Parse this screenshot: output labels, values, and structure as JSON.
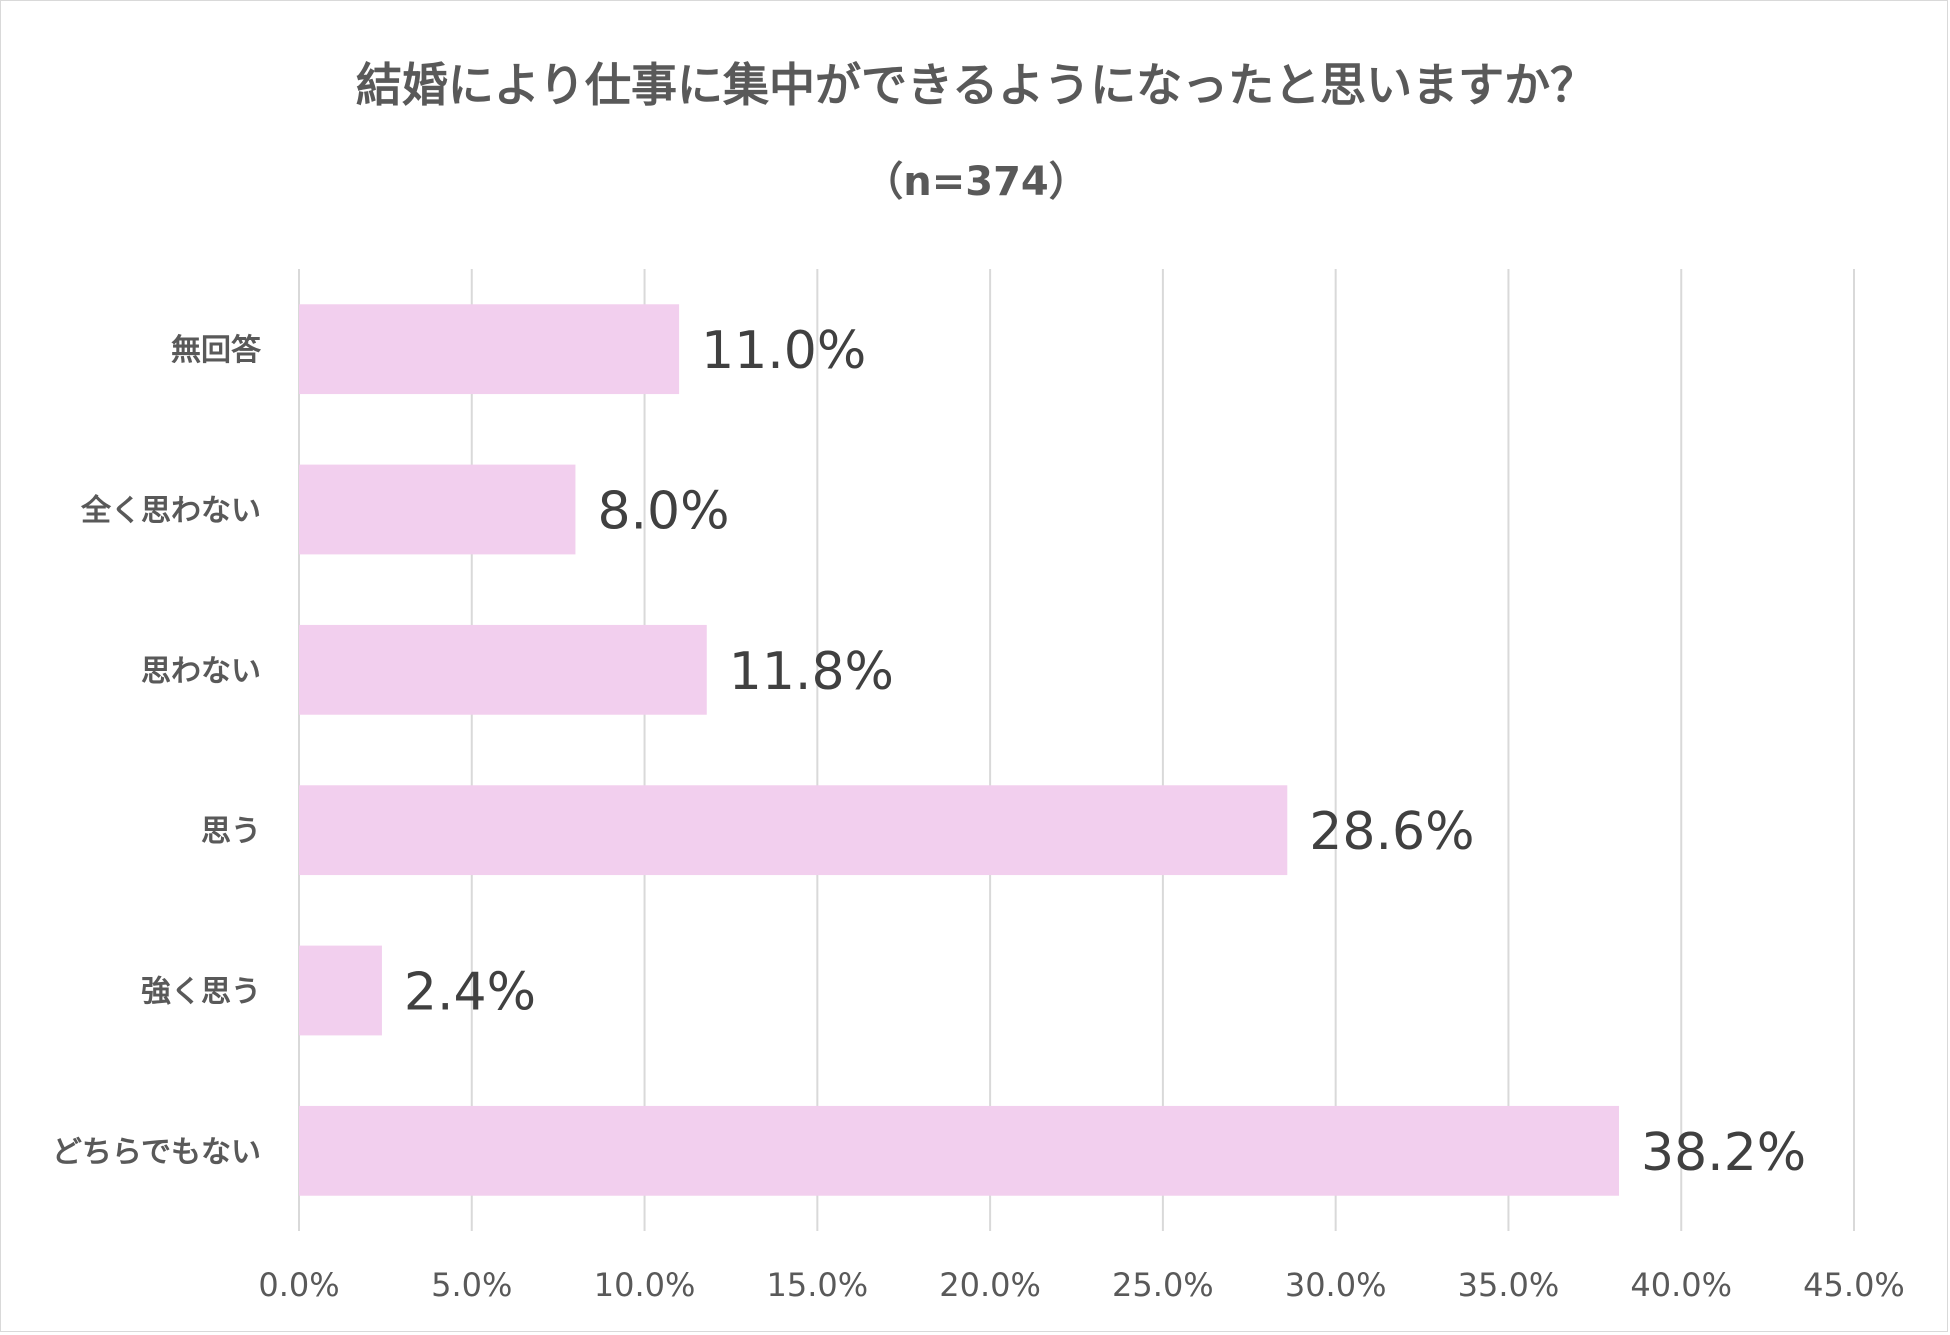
{
  "chart_data": {
    "type": "bar",
    "orientation": "horizontal",
    "title": "結婚により仕事に集中ができるようになったと思いますか？",
    "subtitle": "（n=374）",
    "categories": [
      "無回答",
      "全く思わない",
      "思わない",
      "思う",
      "強く思う",
      "どちらでもない"
    ],
    "values": [
      11.0,
      8.0,
      11.8,
      28.6,
      2.4,
      38.2
    ],
    "value_labels": [
      "11.0%",
      "8.0%",
      "11.8%",
      "28.6%",
      "2.4%",
      "38.2%"
    ],
    "xlim": [
      0,
      45
    ],
    "x_ticks": [
      0,
      5,
      10,
      15,
      20,
      25,
      30,
      35,
      40,
      45
    ],
    "x_tick_labels": [
      "0.0%",
      "5.0%",
      "10.0%",
      "15.0%",
      "20.0%",
      "25.0%",
      "30.0%",
      "35.0%",
      "40.0%",
      "45.0%"
    ],
    "xlabel": "",
    "ylabel": "",
    "grid": true,
    "legend": "none",
    "bar_color": "#f2cfee",
    "grid_color": "#d9d9d9"
  }
}
